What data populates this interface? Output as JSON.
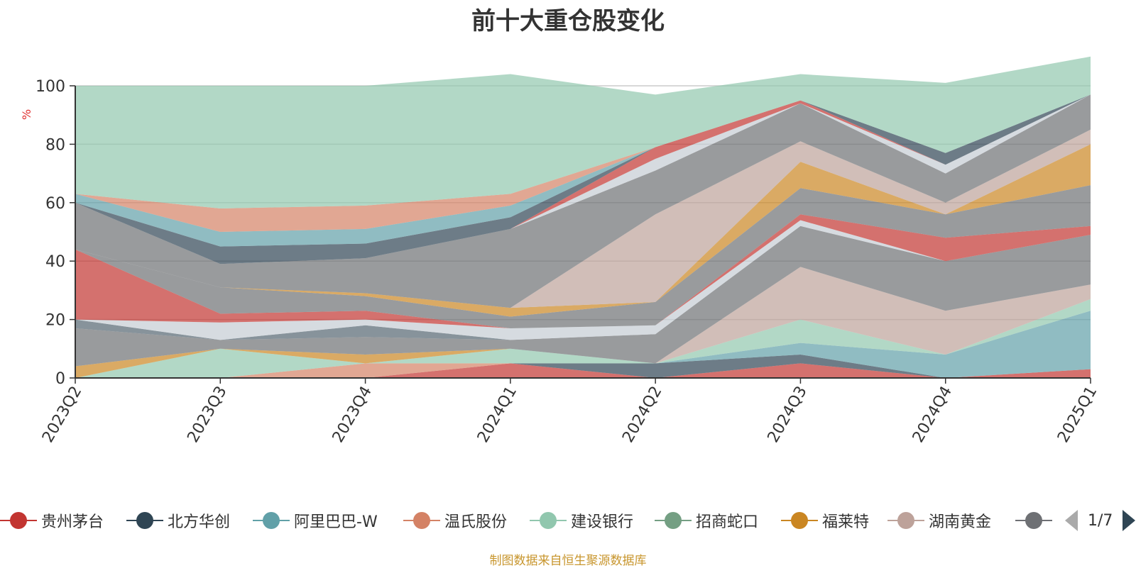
{
  "chart_data": {
    "type": "area",
    "stacked": true,
    "title": "前十大重仓股变化",
    "ylabel": "%",
    "ylim": [
      0,
      100
    ],
    "yticks": [
      "0",
      "20",
      "40",
      "60",
      "80",
      "100"
    ],
    "categories": [
      "2023Q2",
      "2023Q3",
      "2023Q4",
      "2024Q1",
      "2024Q2",
      "2024Q3",
      "2024Q4",
      "2025Q1"
    ],
    "grid": true,
    "legend_position": "bottom",
    "series": [
      {
        "name": "贵州茅台",
        "color": "#c23531",
        "values": [
          0,
          0,
          0,
          5,
          0,
          5,
          0,
          3
        ]
      },
      {
        "name": "北方华创",
        "color": "#2f4554",
        "values": [
          0,
          0,
          0,
          0,
          5,
          3,
          0,
          0
        ]
      },
      {
        "name": "阿里巴巴-W",
        "color": "#61a0a8",
        "values": [
          0,
          0,
          0,
          0,
          0,
          4,
          8,
          20
        ]
      },
      {
        "name": "温氏股份",
        "color": "#d48265",
        "values": [
          0,
          0,
          5,
          0,
          0,
          0,
          0,
          0
        ]
      },
      {
        "name": "建设银行",
        "color": "#91c7ae",
        "values": [
          0,
          10,
          0,
          5,
          0,
          8,
          0,
          4
        ]
      },
      {
        "name": "招商蛇口",
        "color": "#749f83",
        "values": [
          0,
          0,
          0,
          0,
          0,
          0,
          0,
          0
        ]
      },
      {
        "name": "福莱特",
        "color": "#ca8622",
        "values": [
          4,
          0,
          3,
          0,
          0,
          0,
          0,
          0
        ]
      },
      {
        "name": "湖南黄金",
        "color": "#bda29a",
        "values": [
          0,
          0,
          0,
          0,
          0,
          18,
          15,
          5
        ]
      },
      {
        "name": "",
        "color": "#6e7074",
        "values": [
          13,
          3,
          6,
          3,
          10,
          14,
          17,
          17
        ]
      },
      {
        "name": "",
        "color": "#546570",
        "values": [
          3,
          0,
          4,
          0,
          0,
          0,
          0,
          0
        ]
      },
      {
        "name": "",
        "color": "#c4ccd3",
        "values": [
          0,
          6,
          2,
          4,
          3,
          2,
          0,
          0
        ]
      },
      {
        "name": "",
        "color": "#c23531",
        "values": [
          24,
          3,
          3,
          0,
          0,
          2,
          8,
          3
        ]
      },
      {
        "name": "",
        "color": "#6e7074",
        "values": [
          0,
          9,
          5,
          4,
          8,
          9,
          8,
          14
        ]
      },
      {
        "name": "",
        "color": "#ca8622",
        "values": [
          0,
          0,
          1,
          3,
          0,
          9,
          0,
          14
        ]
      },
      {
        "name": "",
        "color": "#bda29a",
        "values": [
          0,
          0,
          0,
          0,
          30,
          7,
          4,
          5
        ]
      },
      {
        "name": "",
        "color": "#6e7074",
        "values": [
          16,
          8,
          12,
          27,
          15,
          13,
          10,
          12
        ]
      },
      {
        "name": "",
        "color": "#c4ccd3",
        "values": [
          0,
          0,
          0,
          0,
          4,
          0,
          3,
          0
        ]
      },
      {
        "name": "",
        "color": "#c23531",
        "values": [
          0,
          0,
          0,
          0,
          4,
          1,
          0,
          0
        ]
      },
      {
        "name": "",
        "color": "#2f4554",
        "values": [
          0,
          6,
          5,
          4,
          0,
          0,
          4,
          0
        ]
      },
      {
        "name": "",
        "color": "#61a0a8",
        "values": [
          3,
          5,
          5,
          4,
          0,
          0,
          0,
          0
        ]
      },
      {
        "name": "",
        "color": "#d48265",
        "values": [
          0,
          8,
          8,
          4,
          0,
          0,
          0,
          0
        ]
      },
      {
        "name": "",
        "color": "#91c7ae",
        "values": [
          37,
          42,
          41,
          41,
          18,
          9,
          24,
          13
        ]
      }
    ],
    "legend_visible": [
      "贵州茅台",
      "北方华创",
      "阿里巴巴-W",
      "温氏股份",
      "建设银行",
      "招商蛇口",
      "福莱特",
      "湖南黄金",
      ""
    ],
    "legend_colors": [
      "#c23531",
      "#2f4554",
      "#61a0a8",
      "#d48265",
      "#91c7ae",
      "#749f83",
      "#ca8622",
      "#bda29a",
      "#6e7074"
    ]
  },
  "legend": {
    "page_indicator": "1/7"
  },
  "footer": {
    "source": "制图数据来自恒生聚源数据库"
  }
}
